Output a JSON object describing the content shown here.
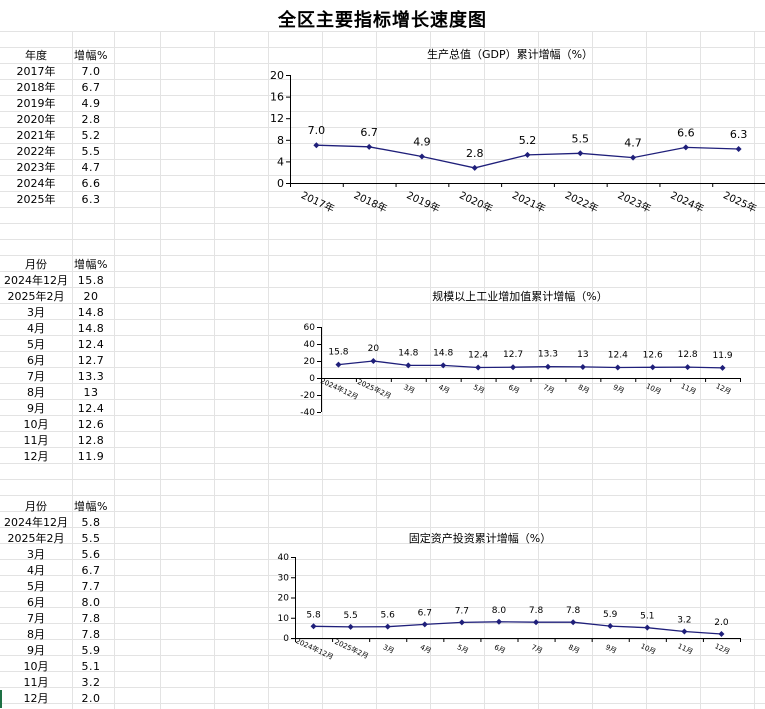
{
  "sheet_title": "全区主要指标增长速度图",
  "tables": [
    {
      "header": [
        "年度",
        "增幅%"
      ],
      "rows": [
        [
          "2017年",
          "7.0"
        ],
        [
          "2018年",
          "6.7"
        ],
        [
          "2019年",
          "4.9"
        ],
        [
          "2020年",
          "2.8"
        ],
        [
          "2021年",
          "5.2"
        ],
        [
          "2022年",
          "5.5"
        ],
        [
          "2023年",
          "4.7"
        ],
        [
          "2024年",
          "6.6"
        ],
        [
          "2025年",
          "6.3"
        ]
      ]
    },
    {
      "header": [
        "月份",
        "增幅%"
      ],
      "rows": [
        [
          "2024年12月",
          "15.8"
        ],
        [
          "2025年2月",
          "20"
        ],
        [
          "3月",
          "14.8"
        ],
        [
          "4月",
          "14.8"
        ],
        [
          "5月",
          "12.4"
        ],
        [
          "6月",
          "12.7"
        ],
        [
          "7月",
          "13.3"
        ],
        [
          "8月",
          "13"
        ],
        [
          "9月",
          "12.4"
        ],
        [
          "10月",
          "12.6"
        ],
        [
          "11月",
          "12.8"
        ],
        [
          "12月",
          "11.9"
        ]
      ]
    },
    {
      "header": [
        "月份",
        "增幅%"
      ],
      "rows": [
        [
          "2024年12月",
          "5.8"
        ],
        [
          "2025年2月",
          "5.5"
        ],
        [
          "3月",
          "5.6"
        ],
        [
          "4月",
          "6.7"
        ],
        [
          "5月",
          "7.7"
        ],
        [
          "6月",
          "8.0"
        ],
        [
          "7月",
          "7.8"
        ],
        [
          "8月",
          "7.8"
        ],
        [
          "9月",
          "5.9"
        ],
        [
          "10月",
          "5.1"
        ],
        [
          "11月",
          "3.2"
        ],
        [
          "12月",
          "2.0"
        ]
      ]
    }
  ],
  "chart_data": [
    {
      "type": "line",
      "title": "生产总值（GDP）累计增幅（%）",
      "categories": [
        "2017年",
        "2018年",
        "2019年",
        "2020年",
        "2021年",
        "2022年",
        "2023年",
        "2024年",
        "2025年"
      ],
      "values": [
        7.0,
        6.7,
        4.9,
        2.8,
        5.2,
        5.5,
        4.7,
        6.6,
        6.3
      ],
      "labels": [
        "7.0",
        "6.7",
        "4.9",
        "2.8",
        "5.2",
        "5.5",
        "4.7",
        "6.6",
        "6.3"
      ],
      "ylim": [
        0,
        20
      ],
      "yticks": [
        "0",
        "4",
        "8",
        "12",
        "16",
        "20"
      ],
      "xlabel": "",
      "ylabel": "",
      "color": "#1f1f7a",
      "grid": false,
      "legend": "none"
    },
    {
      "type": "line",
      "title": "规模以上工业增加值累计增幅（%）",
      "categories": [
        "2024年12月",
        "2025年2月",
        "3月",
        "4月",
        "5月",
        "6月",
        "7月",
        "8月",
        "9月",
        "10月",
        "11月",
        "12月"
      ],
      "values": [
        15.8,
        20,
        14.8,
        14.8,
        12.4,
        12.7,
        13.3,
        13,
        12.4,
        12.6,
        12.8,
        11.9
      ],
      "labels": [
        "15.8",
        "20",
        "14.8",
        "14.8",
        "12.4",
        "12.7",
        "13.3",
        "13",
        "12.4",
        "12.6",
        "12.8",
        "11.9"
      ],
      "ylim": [
        -40,
        60
      ],
      "yticks": [
        "-40",
        "-20",
        "0",
        "20",
        "40",
        "60"
      ],
      "xlabel": "",
      "ylabel": "",
      "color": "#1f1f7a",
      "grid": false,
      "legend": "none"
    },
    {
      "type": "line",
      "title": "固定资产投资累计增幅（%）",
      "categories": [
        "2024年12月",
        "2025年2月",
        "3月",
        "4月",
        "5月",
        "6月",
        "7月",
        "8月",
        "9月",
        "10月",
        "11月",
        "12月"
      ],
      "values": [
        5.8,
        5.5,
        5.6,
        6.7,
        7.7,
        8.0,
        7.8,
        7.8,
        5.9,
        5.1,
        3.2,
        2.0
      ],
      "labels": [
        "5.8",
        "5.5",
        "5.6",
        "6.7",
        "7.7",
        "8.0",
        "7.8",
        "7.8",
        "5.9",
        "5.1",
        "3.2",
        "2.0"
      ],
      "ylim": [
        0,
        40
      ],
      "yticks": [
        "0",
        "10",
        "20",
        "30",
        "40"
      ],
      "xlabel": "",
      "ylabel": "",
      "color": "#1f1f7a",
      "grid": false,
      "legend": "none"
    }
  ]
}
